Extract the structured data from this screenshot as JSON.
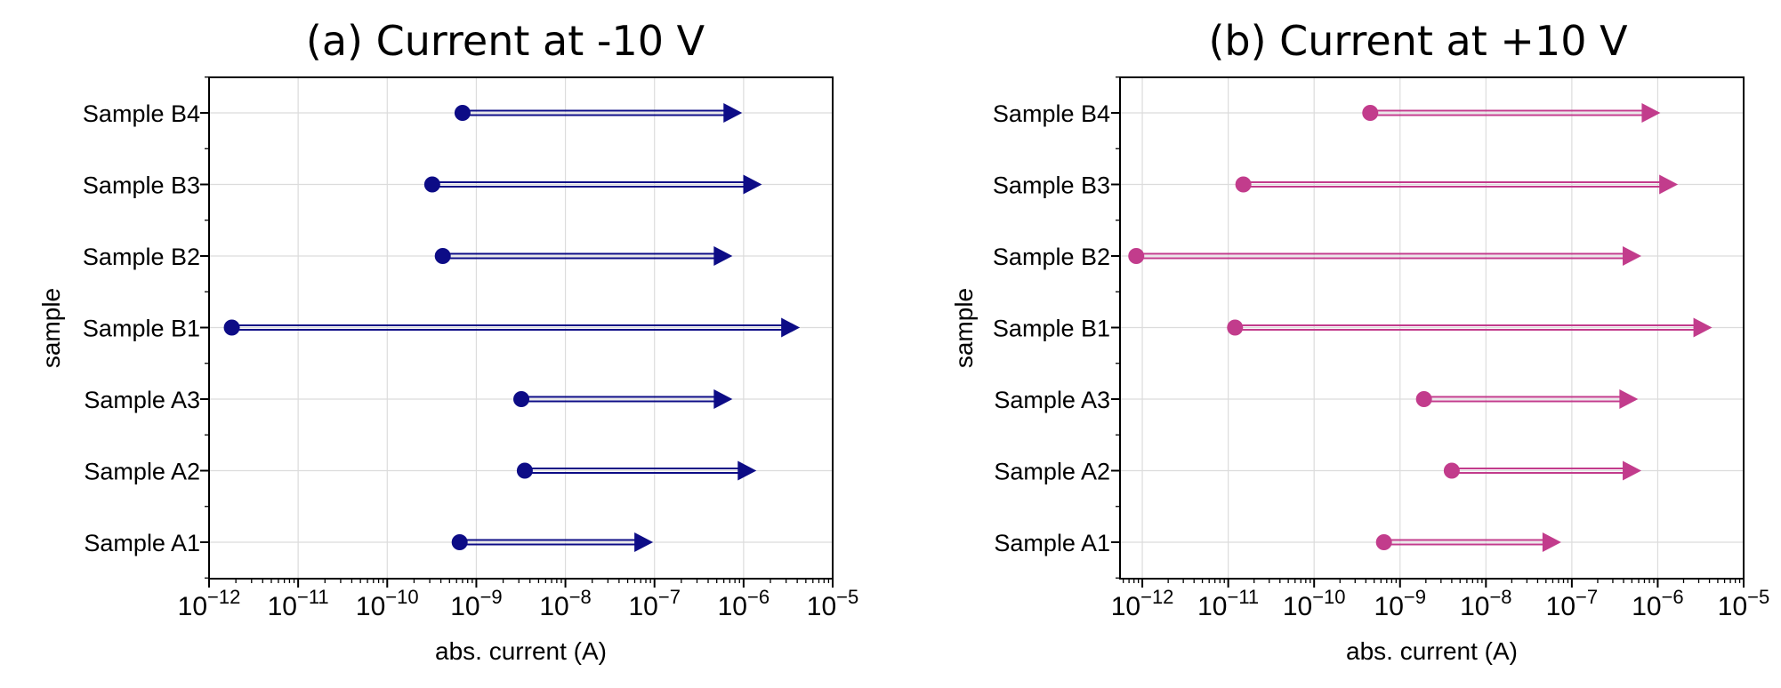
{
  "chart_data": [
    {
      "type": "dumbbell-arrow",
      "title": "(a) Current at -10 V",
      "xlabel": "abs. current (A)",
      "ylabel": "sample",
      "xscale": "log",
      "xlim": [
        1e-12,
        1e-05
      ],
      "x_ticks": [
        1e-12,
        1e-11,
        1e-10,
        1e-09,
        1e-08,
        1e-07,
        1e-06,
        1e-05
      ],
      "x_tick_labels": [
        {
          "base": "10",
          "exp": "−12"
        },
        {
          "base": "10",
          "exp": "−11"
        },
        {
          "base": "10",
          "exp": "−10"
        },
        {
          "base": "10",
          "exp": "−9"
        },
        {
          "base": "10",
          "exp": "−8"
        },
        {
          "base": "10",
          "exp": "−7"
        },
        {
          "base": "10",
          "exp": "−6"
        },
        {
          "base": "10",
          "exp": "−5"
        }
      ],
      "grid": true,
      "color": "#0d0c86",
      "categories": [
        "Sample A1",
        "Sample A2",
        "Sample A3",
        "Sample B1",
        "Sample B2",
        "Sample B3",
        "Sample B4"
      ],
      "start": [
        6.5e-10,
        3.5e-09,
        3.2e-09,
        1.8e-12,
        4.2e-10,
        3.2e-10,
        7e-10
      ],
      "end": [
        9e-08,
        1.3e-06,
        7e-07,
        4e-06,
        7e-07,
        1.5e-06,
        9e-07
      ]
    },
    {
      "type": "dumbbell-arrow",
      "title": "(b) Current at +10 V",
      "xlabel": "abs. current (A)",
      "ylabel": "sample",
      "xscale": "log",
      "xlim": [
        5.5e-13,
        1e-05
      ],
      "x_ticks": [
        1e-12,
        1e-11,
        1e-10,
        1e-09,
        1e-08,
        1e-07,
        1e-06,
        1e-05
      ],
      "x_tick_labels": [
        {
          "base": "10",
          "exp": "−12"
        },
        {
          "base": "10",
          "exp": "−11"
        },
        {
          "base": "10",
          "exp": "−10"
        },
        {
          "base": "10",
          "exp": "−9"
        },
        {
          "base": "10",
          "exp": "−8"
        },
        {
          "base": "10",
          "exp": "−7"
        },
        {
          "base": "10",
          "exp": "−6"
        },
        {
          "base": "10",
          "exp": "−5"
        }
      ],
      "grid": true,
      "color": "#c23c8c",
      "categories": [
        "Sample A1",
        "Sample A2",
        "Sample A3",
        "Sample B1",
        "Sample B2",
        "Sample B3",
        "Sample B4"
      ],
      "start": [
        6.5e-10,
        4e-09,
        1.9e-09,
        1.2e-11,
        8.5e-13,
        1.5e-11,
        4.5e-10
      ],
      "end": [
        7e-08,
        6e-07,
        5.5e-07,
        4e-06,
        6e-07,
        1.6e-06,
        1e-06
      ]
    }
  ]
}
